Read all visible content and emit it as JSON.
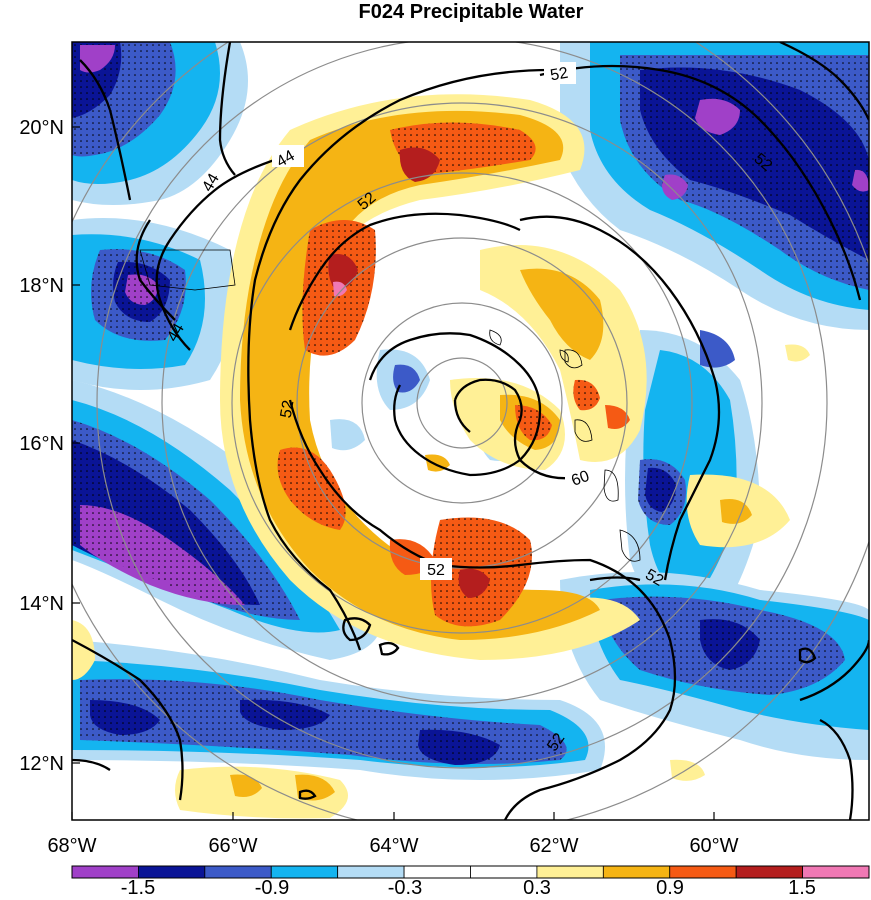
{
  "title": "F024 Precipitable Water",
  "axes": {
    "lon_labels": [
      "68°W",
      "66°W",
      "64°W",
      "62°W",
      "60°W"
    ],
    "lat_labels": [
      "20°N",
      "18°N",
      "16°N",
      "14°N",
      "12°N"
    ]
  },
  "contour_labels": {
    "upper_right_52": "52",
    "left_44_a": "44",
    "left_44_b": "44",
    "left_44_c": "44",
    "upper_52": "52",
    "left_52": "52",
    "lower_52": "52",
    "right_52": "52",
    "bottom_52": "52",
    "center_60": "60",
    "far_right_52": "52"
  },
  "colorbar": {
    "colors": [
      "#a040c8",
      "#0a1496",
      "#3c5ac8",
      "#14b4f0",
      "#b4dcf5",
      "#ffffff",
      "#ffffff",
      "#fff096",
      "#f5b414",
      "#f55a14",
      "#b41e1e",
      "#f078b4"
    ],
    "tick_labels": [
      "-1.5",
      "-0.9",
      "-0.3",
      "0.3",
      "0.9",
      "1.5"
    ]
  },
  "legend_colors": {
    "purple": "#a040c8",
    "dark_blue": "#0a1496",
    "mid_blue": "#3c5ac8",
    "cyan": "#14b4f0",
    "light_blue": "#b4dcf5",
    "light_yellow": "#fff096",
    "orange": "#f5b414",
    "red_orange": "#f55a14",
    "dark_red": "#b41e1e",
    "pink": "#f078b4"
  }
}
